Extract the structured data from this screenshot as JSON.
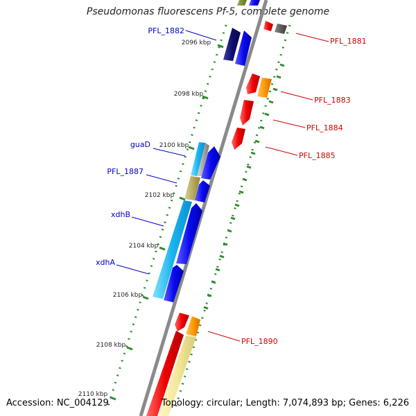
{
  "title": "Pseudomonas fluorescens Pf-5, complete genome",
  "footer": {
    "accession": "Accession: NC_004129",
    "summary": "Topology: circular; Length: 7,074,893 bp; Genes: 6,226"
  },
  "colors": {
    "backbone": "#8a8a8a",
    "scale_dots": "#2e8b2e",
    "left_label": "#0000c8",
    "right_label": "#d00000"
  },
  "ruler": [
    {
      "label": "2096 kbp"
    },
    {
      "label": "2098 kbp"
    },
    {
      "label": "2100 kbp"
    },
    {
      "label": "2102 kbp"
    },
    {
      "label": "2104 kbp"
    },
    {
      "label": "2106 kbp"
    },
    {
      "label": "2108 kbp"
    },
    {
      "label": "2110 kbp"
    }
  ],
  "genes_left": [
    {
      "label": "PFL_1882",
      "color": "#0000c8"
    },
    {
      "label": "guaD",
      "color": "#0000c8"
    },
    {
      "label": "PFL_1887",
      "color": "#0000c8"
    },
    {
      "label": "xdhB",
      "color": "#0000c8"
    },
    {
      "label": "xdhA",
      "color": "#0000c8"
    }
  ],
  "genes_right": [
    {
      "label": "PFL_1881",
      "color": "#d00000"
    },
    {
      "label": "PFL_1883",
      "color": "#d00000"
    },
    {
      "label": "PFL_1884",
      "color": "#d00000"
    },
    {
      "label": "PFL_1885",
      "color": "#d00000"
    },
    {
      "label": "PFL_1890",
      "color": "#d00000"
    }
  ]
}
